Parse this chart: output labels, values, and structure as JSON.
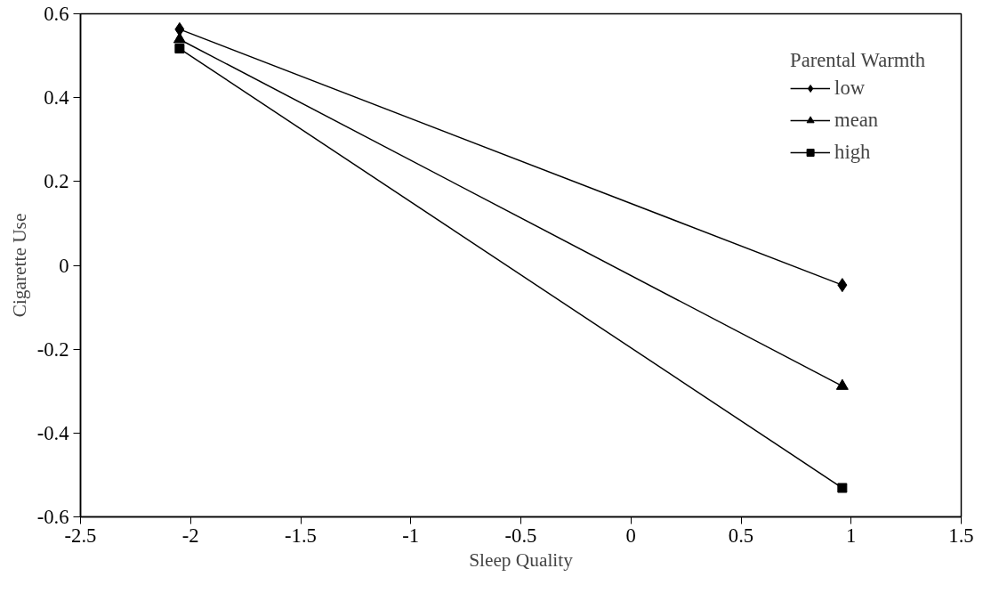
{
  "chart_data": {
    "type": "line",
    "xlabel": "Sleep Quality",
    "ylabel": "Cigarette Use",
    "legend_title": "Parental Warmth",
    "legend": "top right",
    "grid": false,
    "line_style": "solid",
    "xlim": [
      -2.5,
      1.5
    ],
    "xticks": [
      -2.5,
      -2,
      -1.5,
      -1,
      -0.5,
      0,
      0.5,
      1,
      1.5
    ],
    "ylim": [
      -0.6,
      0.6
    ],
    "yticks": [
      -0.6,
      -0.4,
      -0.2,
      0,
      0.2,
      0.4,
      0.6
    ],
    "x": [
      -2.05,
      0.96
    ],
    "series": [
      {
        "name": "low",
        "color": "#000000",
        "marker": "diamond",
        "values": [
          0.563,
          -0.047
        ]
      },
      {
        "name": "mean",
        "color": "#000000",
        "marker": "triangle",
        "values": [
          0.539,
          -0.288
        ]
      },
      {
        "name": "high",
        "color": "#000000",
        "marker": "square",
        "values": [
          0.517,
          -0.531
        ]
      }
    ]
  }
}
